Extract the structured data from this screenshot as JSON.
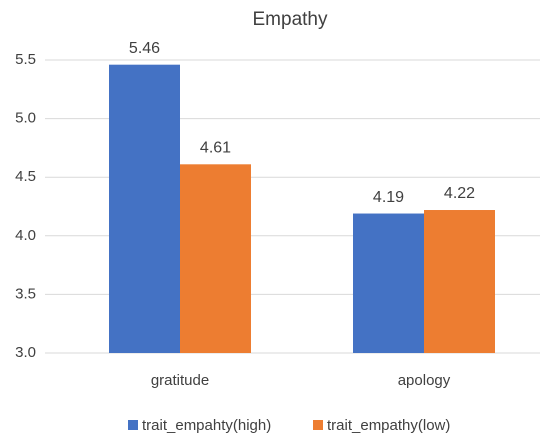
{
  "chart_data": {
    "type": "bar",
    "title": "Empathy",
    "categories": [
      "gratitude",
      "apology"
    ],
    "series": [
      {
        "name": "trait_empahty(high)",
        "color": "#4472c4",
        "values": [
          5.46,
          4.19
        ]
      },
      {
        "name": "trait_empathy(low)",
        "color": "#ed7d31",
        "values": [
          4.61,
          4.22
        ]
      }
    ],
    "ylim": [
      3.0,
      5.5
    ],
    "yticks": [
      {
        "value": 3,
        "label": "3.0"
      },
      3.5,
      {
        "value": 4,
        "label": "4.0"
      },
      4.5,
      {
        "value": 5,
        "label": "5.0"
      },
      5.5
    ],
    "grid": true,
    "legend": "bottom"
  }
}
